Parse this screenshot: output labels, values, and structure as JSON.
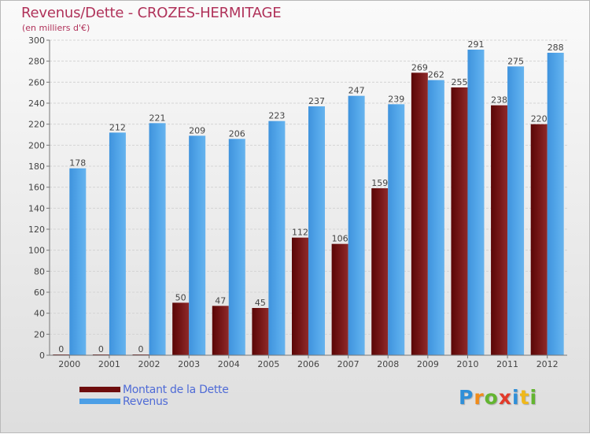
{
  "header": {
    "title": "Revenus/Dette - CROZES-HERMITAGE",
    "subtitle": "(en milliers d'€)"
  },
  "legend": {
    "items": [
      {
        "label": "Montant de la Dette",
        "color": "#6e0d0d"
      },
      {
        "label": "Revenus",
        "color": "#4c9fe6"
      }
    ]
  },
  "logo": {
    "letters": [
      {
        "char": "P",
        "color": "#2f8fd8"
      },
      {
        "char": "r",
        "color": "#f08b1a"
      },
      {
        "char": "o",
        "color": "#63b530"
      },
      {
        "char": "x",
        "color": "#e23a2a"
      },
      {
        "char": "i",
        "color": "#2f8fd8"
      },
      {
        "char": "t",
        "color": "#f0b81a"
      },
      {
        "char": "i",
        "color": "#63b530"
      }
    ]
  },
  "chart_data": {
    "type": "bar",
    "categories": [
      "2000",
      "2001",
      "2002",
      "2003",
      "2004",
      "2005",
      "2006",
      "2007",
      "2008",
      "2009",
      "2010",
      "2011",
      "2012"
    ],
    "series": [
      {
        "name": "Montant de la Dette",
        "values": [
          0,
          0,
          0,
          50,
          47,
          45,
          112,
          106,
          159,
          269,
          255,
          238,
          220
        ],
        "color": "#6e0d0d"
      },
      {
        "name": "Revenus",
        "values": [
          178,
          212,
          221,
          209,
          206,
          223,
          237,
          247,
          239,
          262,
          291,
          275,
          288
        ],
        "color": "#4c9fe6"
      }
    ],
    "ylim": [
      0,
      300
    ],
    "yticks": [
      0,
      20,
      40,
      60,
      80,
      100,
      120,
      140,
      160,
      180,
      200,
      220,
      240,
      260,
      280,
      300
    ],
    "grid": true,
    "legend_position": "bottom-left"
  }
}
